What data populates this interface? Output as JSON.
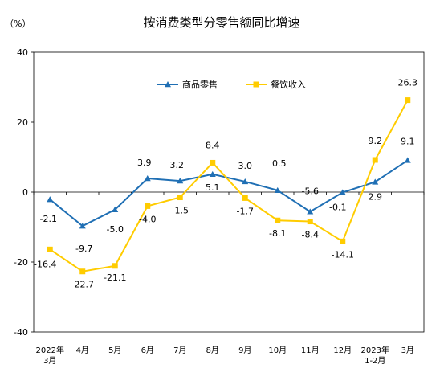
{
  "chart_data": {
    "type": "line",
    "title": "按消费类型分零售额同比增速",
    "unit_label": "（%）",
    "xlabel": "",
    "ylabel": "",
    "ylim": [
      -40,
      40
    ],
    "yticks": [
      -40,
      -20,
      0,
      20,
      40
    ],
    "categories": [
      [
        "2022年",
        "3月"
      ],
      [
        "4月"
      ],
      [
        "5月"
      ],
      [
        "6月"
      ],
      [
        "7月"
      ],
      [
        "8月"
      ],
      [
        "9月"
      ],
      [
        "10月"
      ],
      [
        "11月"
      ],
      [
        "12月"
      ],
      [
        "2023年",
        "1-2月"
      ],
      [
        "3月"
      ]
    ],
    "legend_position": "top-center",
    "series": [
      {
        "name": "商品零售",
        "color": "#1f6fb4",
        "marker": "triangle",
        "values": [
          -2.1,
          -9.7,
          -5.0,
          3.9,
          3.2,
          5.1,
          3.0,
          0.5,
          -5.6,
          -0.1,
          2.9,
          9.1
        ],
        "labels": [
          "-2.1",
          "-9.7",
          "-5.0",
          "3.9",
          "3.2",
          "5.1",
          "3.0",
          "0.5",
          "-5.6",
          "-0.1",
          "2.9",
          "9.1"
        ]
      },
      {
        "name": "餐饮收入",
        "color": "#ffcc00",
        "marker": "square",
        "values": [
          -16.4,
          -22.7,
          -21.1,
          -4.0,
          -1.5,
          8.4,
          -1.7,
          -8.1,
          -8.4,
          -14.1,
          9.2,
          26.3
        ],
        "labels": [
          "-16.4",
          "-22.7",
          "-21.1",
          "-4.0",
          "-1.5",
          "8.4",
          "-1.7",
          "-8.1",
          "-8.4",
          "-14.1",
          "9.2",
          "26.3"
        ]
      }
    ]
  }
}
